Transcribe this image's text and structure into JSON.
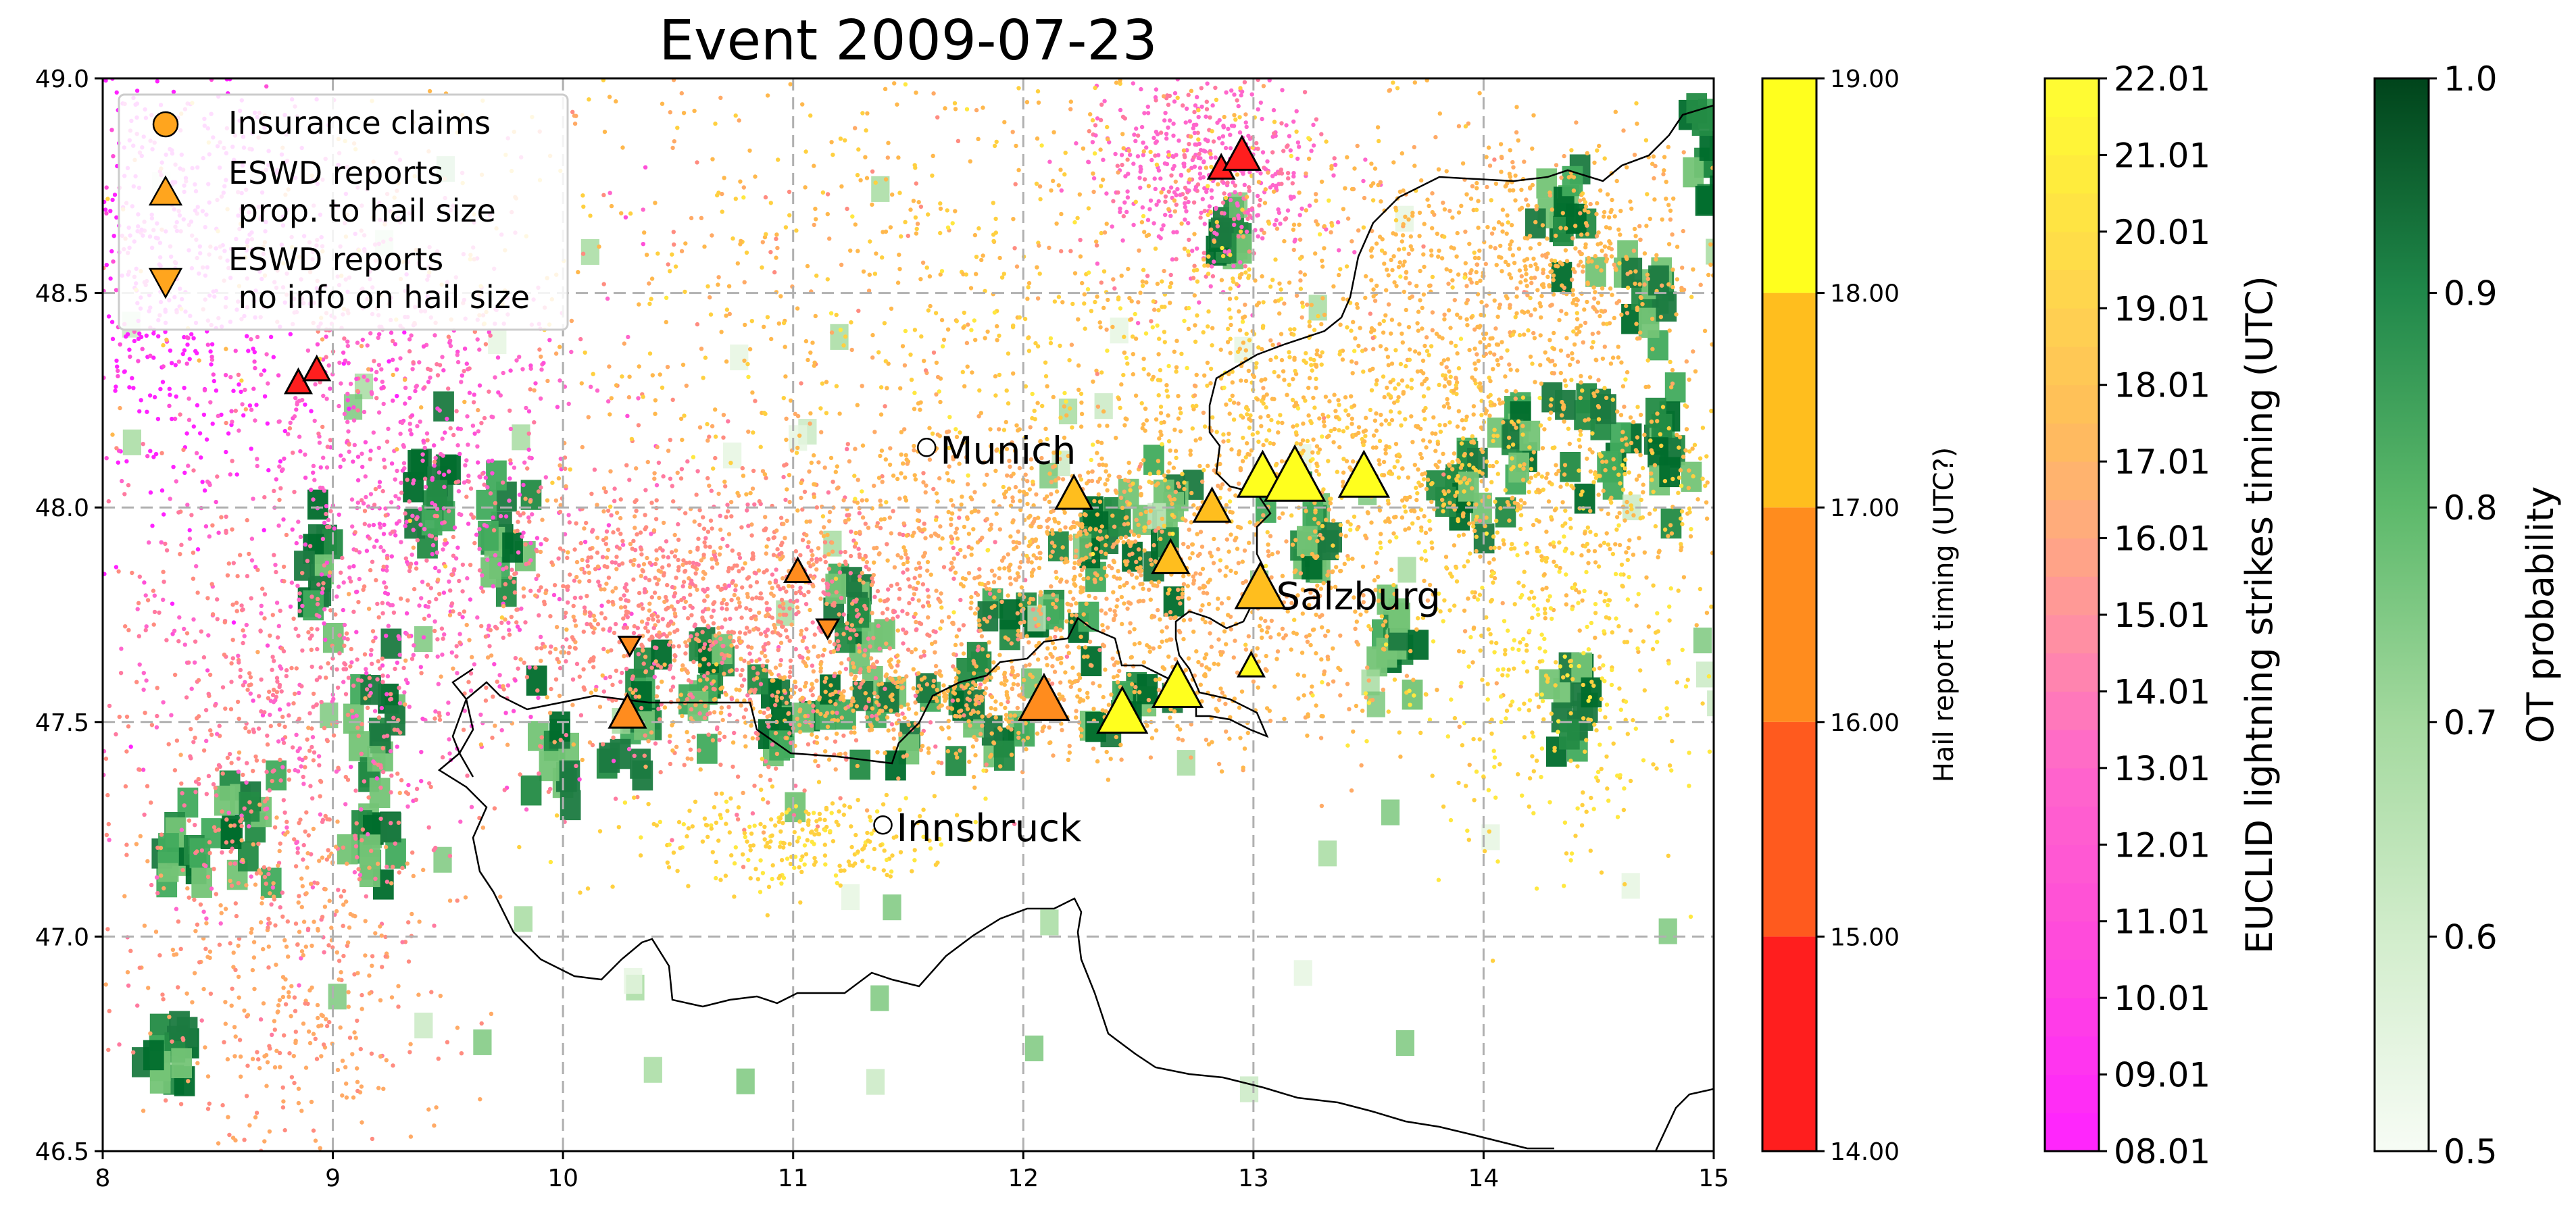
{
  "title": "Event 2009-07-23",
  "map": {
    "lon_range": [
      8,
      15
    ],
    "lat_range": [
      46.5,
      49.0
    ],
    "x_ticks": [
      "8",
      "9",
      "10",
      "11",
      "12",
      "13",
      "14",
      "15"
    ],
    "y_ticks": [
      "46.5",
      "47.0",
      "47.5",
      "48.0",
      "48.5",
      "49.0"
    ],
    "grid": true,
    "cities": [
      {
        "name": "Munich",
        "lon": 11.58,
        "lat": 48.14
      },
      {
        "name": "Salzburg",
        "lon": 13.04,
        "lat": 47.8
      },
      {
        "name": "Innsbruck",
        "lon": 11.39,
        "lat": 47.26
      }
    ],
    "legend": {
      "placement": "upper-left",
      "items": [
        {
          "label": "Insurance claims",
          "marker": "circle"
        },
        {
          "label": "ESWD reports\n prop. to hail size",
          "marker": "triangle-up"
        },
        {
          "label": "ESWD reports\n no info on hail size",
          "marker": "triangle-down"
        }
      ]
    }
  },
  "colorbars": {
    "hail": {
      "label": "Hail report timing (UTC?)",
      "ticks": [
        "14.00",
        "15.00",
        "16.00",
        "17.00",
        "18.00",
        "19.00"
      ],
      "colors": [
        "#ff1e1e",
        "#ff5a1e",
        "#ff8c1e",
        "#ffbe1e",
        "#ffff1e"
      ]
    },
    "lightning": {
      "label": "EUCLID lightning strikes timing (UTC)",
      "ticks": [
        "08.01",
        "09.01",
        "10.01",
        "11.01",
        "12.01",
        "13.01",
        "14.01",
        "15.01",
        "16.01",
        "17.01",
        "18.01",
        "19.01",
        "20.01",
        "21.01",
        "22.01"
      ]
    },
    "ot": {
      "label": "OT probability",
      "ticks": [
        "0.5",
        "0.6",
        "0.7",
        "0.8",
        "0.9",
        "1.0"
      ]
    }
  },
  "hail_reports": [
    {
      "lon": 8.85,
      "lat": 48.29,
      "time": 14.3,
      "size": "small",
      "dir": "up"
    },
    {
      "lon": 8.93,
      "lat": 48.32,
      "time": 14.5,
      "size": "small",
      "dir": "up"
    },
    {
      "lon": 12.86,
      "lat": 48.79,
      "time": 14.6,
      "size": "small",
      "dir": "up"
    },
    {
      "lon": 12.95,
      "lat": 48.82,
      "time": 14.7,
      "size": "medium",
      "dir": "up"
    },
    {
      "lon": 10.29,
      "lat": 47.68,
      "time": 16.2,
      "size": "small",
      "dir": "down"
    },
    {
      "lon": 10.28,
      "lat": 47.52,
      "time": 16.5,
      "size": "medium",
      "dir": "up"
    },
    {
      "lon": 11.02,
      "lat": 47.85,
      "time": 16.4,
      "size": "small",
      "dir": "up"
    },
    {
      "lon": 11.15,
      "lat": 47.72,
      "time": 16.3,
      "size": "small",
      "dir": "down"
    },
    {
      "lon": 12.09,
      "lat": 47.55,
      "time": 16.7,
      "size": "large",
      "dir": "up"
    },
    {
      "lon": 12.22,
      "lat": 48.03,
      "time": 17.2,
      "size": "medium",
      "dir": "up"
    },
    {
      "lon": 12.64,
      "lat": 47.88,
      "time": 17.3,
      "size": "medium",
      "dir": "up"
    },
    {
      "lon": 12.82,
      "lat": 48.0,
      "time": 17.4,
      "size": "medium",
      "dir": "up"
    },
    {
      "lon": 13.03,
      "lat": 47.81,
      "time": 17.5,
      "size": "large",
      "dir": "up"
    },
    {
      "lon": 12.99,
      "lat": 47.63,
      "time": 18.1,
      "size": "small",
      "dir": "up"
    },
    {
      "lon": 12.43,
      "lat": 47.52,
      "time": 18.4,
      "size": "large",
      "dir": "up"
    },
    {
      "lon": 12.67,
      "lat": 47.58,
      "time": 18.5,
      "size": "large",
      "dir": "up"
    },
    {
      "lon": 13.04,
      "lat": 48.07,
      "time": 18.3,
      "size": "large",
      "dir": "up"
    },
    {
      "lon": 13.18,
      "lat": 48.07,
      "time": 18.6,
      "size": "xlarge",
      "dir": "up"
    },
    {
      "lon": 13.48,
      "lat": 48.07,
      "time": 18.4,
      "size": "large",
      "dir": "up"
    }
  ]
}
